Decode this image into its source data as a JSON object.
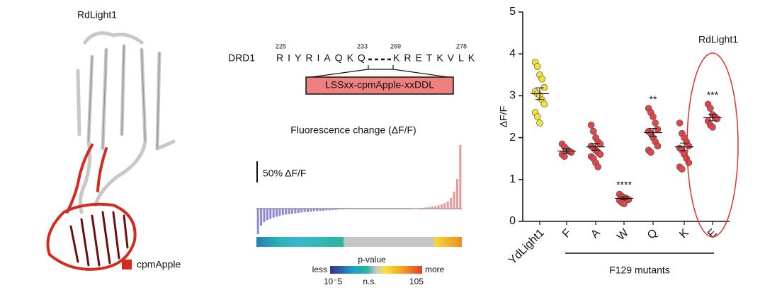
{
  "structure": {
    "title": "RdLight1",
    "legend": "cpmApple"
  },
  "sequence": {
    "receptor": "DRD1",
    "left": "RIYRIAQKQ",
    "right": "KRETKVLK",
    "numbers": [
      "225",
      "233",
      "269",
      "278"
    ],
    "insert": "LSSxx-cpmApple-xxDDL"
  },
  "screen": {
    "title": "Fluorescence change (ΔF/F)",
    "scale_bar": {
      "value": 50,
      "label": "50% ΔF/F"
    },
    "values": [
      -60,
      -40,
      -32,
      -27,
      -24,
      -21,
      -19,
      -17,
      -15,
      -14,
      -13,
      -12,
      -11,
      -10,
      -9,
      -8,
      -8,
      -7,
      -6,
      -6,
      -5,
      -5,
      -4,
      -4,
      -3,
      -3,
      -2,
      -2,
      -1,
      -1,
      0,
      0,
      0,
      0,
      0,
      0,
      0,
      0,
      0,
      0,
      0,
      0,
      0,
      0,
      0,
      0,
      0,
      0,
      0,
      0,
      1,
      1,
      2,
      2,
      3,
      4,
      5,
      6,
      8,
      10,
      13,
      17,
      25,
      40,
      70,
      150
    ],
    "pvalue_title": "p-value",
    "pvalue_less": "less",
    "pvalue_more": "more",
    "pvalue_ticks": [
      "10⁻5",
      "n.s.",
      "105"
    ]
  },
  "chart_data": {
    "type": "strip",
    "ylabel": "ΔF/F",
    "categories": [
      "YdLight1",
      "F",
      "A",
      "W",
      "Q",
      "K",
      "E"
    ],
    "colors": [
      "#f2e23a",
      "#e0474c",
      "#e0474c",
      "#e0474c",
      "#e0474c",
      "#e0474c",
      "#e0474c"
    ],
    "points": [
      [
        3.8,
        3.7,
        3.5,
        3.4,
        3.2,
        3.1,
        3.05,
        3.0,
        2.9,
        2.8,
        2.6,
        2.5,
        2.35
      ],
      [
        1.85,
        1.78,
        1.72,
        1.68,
        1.65,
        1.6,
        1.55
      ],
      [
        2.3,
        2.15,
        2.0,
        1.9,
        1.85,
        1.8,
        1.75,
        1.7,
        1.65,
        1.6,
        1.55,
        1.5,
        1.4,
        1.3
      ],
      [
        0.65,
        0.6,
        0.57,
        0.55,
        0.52,
        0.5,
        0.45,
        0.42
      ],
      [
        2.7,
        2.6,
        2.5,
        2.35,
        2.2,
        2.15,
        2.1,
        2.0,
        1.9,
        1.8,
        1.7,
        1.65
      ],
      [
        2.35,
        2.1,
        2.0,
        1.9,
        1.8,
        1.75,
        1.7,
        1.6,
        1.5,
        1.4,
        1.3,
        1.25
      ],
      [
        2.8,
        2.7,
        2.55,
        2.5,
        2.45,
        2.4,
        2.3,
        2.25
      ]
    ],
    "means": [
      3.05,
      1.68,
      1.78,
      0.55,
      2.12,
      1.78,
      2.48
    ],
    "sems": [
      0.14,
      0.05,
      0.08,
      0.03,
      0.1,
      0.09,
      0.08
    ],
    "significance": [
      null,
      null,
      null,
      "****",
      "**",
      null,
      "***"
    ],
    "group_label": "F129 mutants",
    "highlight_label": "RdLight1",
    "ylim": [
      0,
      5
    ],
    "yticks": [
      0,
      1,
      2,
      3,
      4,
      5
    ]
  }
}
